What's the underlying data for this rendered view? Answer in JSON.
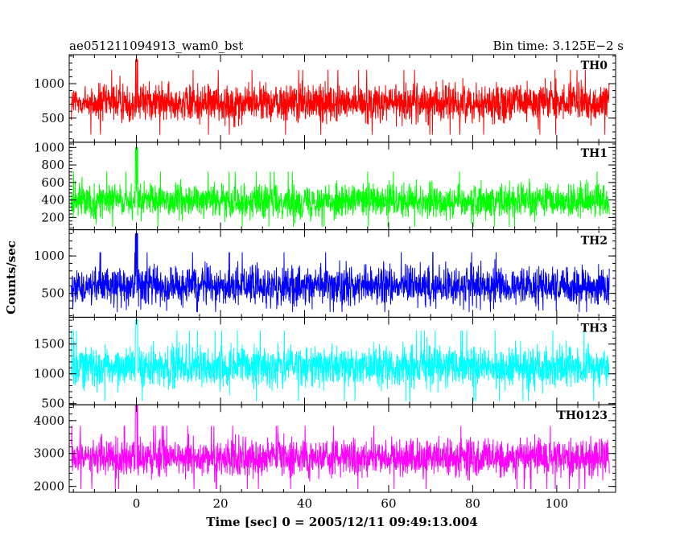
{
  "chart_data": {
    "type": "line",
    "title": "ae051211094913_wam0_bst",
    "subtitle": "Bin time: 3.125E−2 s",
    "xlabel": "Time [sec] 0 = 2005/12/11 09:49:13.004",
    "ylabel": "Counts/sec",
    "xlim": [
      -16,
      114
    ],
    "x_ticks": [
      0,
      20,
      40,
      60,
      80,
      100
    ],
    "x_tick_labels": [
      "0",
      "20",
      "40",
      "60",
      "80",
      "100"
    ],
    "data_x_range": [
      -15.5,
      112.5
    ],
    "grid": false,
    "series": [
      {
        "name": "TH0",
        "color": "#ff0000",
        "ylim": [
          150,
          1420
        ],
        "ticks": [
          500,
          1000
        ],
        "tick_labels": [
          "500",
          "1000"
        ],
        "baseline": 720,
        "spread": 300,
        "floor": 260,
        "ceil": 1350
      },
      {
        "name": "TH1",
        "color": "#00ff00",
        "ylim": [
          60,
          1060
        ],
        "ticks": [
          200,
          400,
          600,
          800,
          1000
        ],
        "tick_labels": [
          "200",
          "400",
          "600",
          "800",
          "1000"
        ],
        "baseline": 390,
        "spread": 210,
        "floor": 95,
        "ceil": 1000
      },
      {
        "name": "TH2",
        "color": "#0000ff",
        "ylim": [
          180,
          1350
        ],
        "ticks": [
          500,
          1000
        ],
        "tick_labels": [
          "500",
          "1000"
        ],
        "baseline": 600,
        "spread": 280,
        "floor": 250,
        "ceil": 1300
      },
      {
        "name": "TH3",
        "color": "#00ffff",
        "ylim": [
          480,
          1950
        ],
        "ticks": [
          500,
          1000,
          1500
        ],
        "tick_labels": [
          "500",
          "1000",
          "1500"
        ],
        "baseline": 1120,
        "spread": 380,
        "floor": 540,
        "ceil": 1900
      },
      {
        "name": "TH0123",
        "color": "#ff00ff",
        "ylim": [
          1820,
          4480
        ],
        "ticks": [
          2000,
          3000,
          4000
        ],
        "tick_labels": [
          "2000",
          "3000",
          "4000"
        ],
        "baseline": 2880,
        "spread": 600,
        "floor": 1880,
        "ceil": 4450
      }
    ]
  }
}
